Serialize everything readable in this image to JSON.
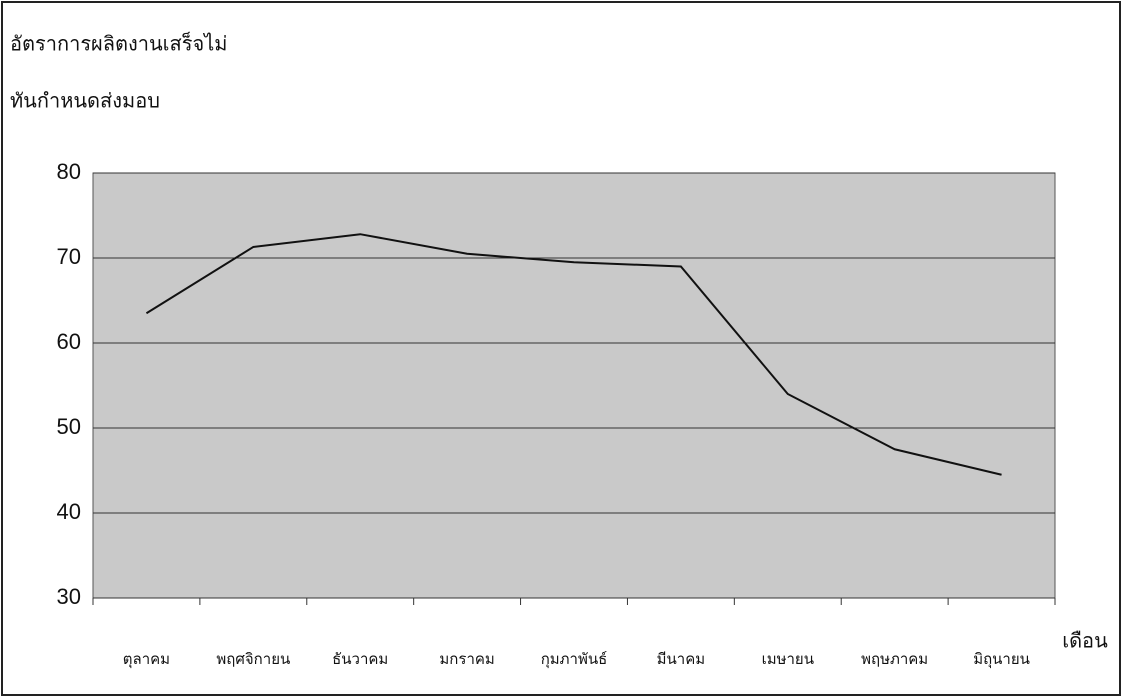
{
  "chart_data": {
    "type": "line",
    "title": [
      "อัตราการผลิตงานเสร็จไม่",
      "ทันกำหนดส่งมอบ"
    ],
    "xlabel": "เดือน",
    "categories": [
      "ตุลาคม",
      "พฤศจิกายน",
      "ธันวาคม",
      "มกราคม",
      "กุมภาพันธ์",
      "มีนาคม",
      "เมษายน",
      "พฤษภาคม",
      "มิถุนายน"
    ],
    "values": [
      63.5,
      71.3,
      72.8,
      70.5,
      69.5,
      69,
      54,
      47.5,
      44.5
    ],
    "color": "#111111",
    "ylim": [
      30,
      80
    ],
    "yticks": [
      30,
      40,
      50,
      60,
      70,
      80
    ],
    "grid": true
  }
}
